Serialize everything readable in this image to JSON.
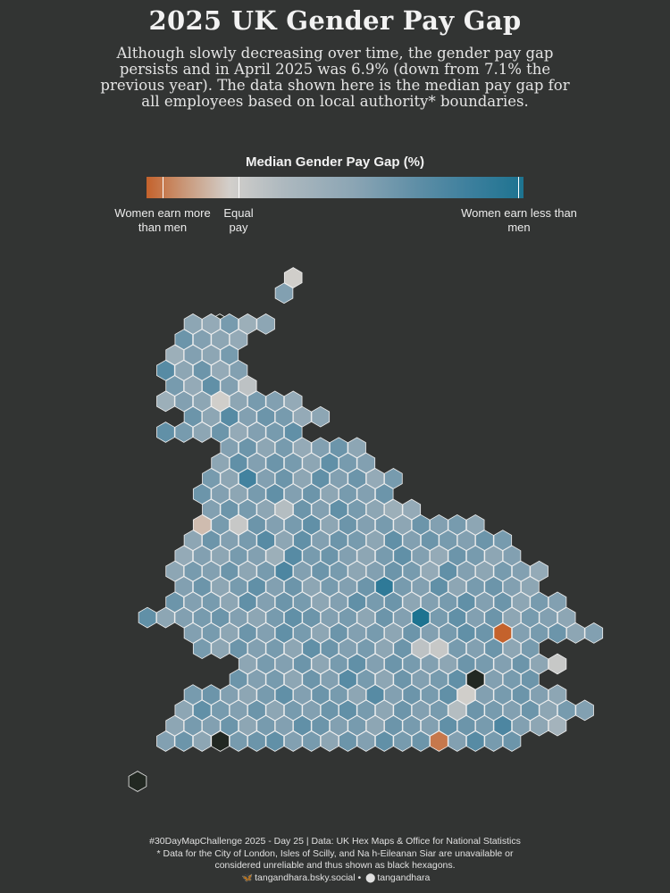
{
  "title": "2025 UK Gender Pay Gap",
  "subtitle": "Although slowly decreasing over time, the gender pay gap persists and in April 2025 was 6.9% (down from 7.1% the previous year). The data shown here is the median pay gap for all employees based on local authority* boundaries.",
  "legend": {
    "title": "Median Gender Pay Gap (%)",
    "left_label": "Women earn more than men",
    "mid_label": "Equal pay",
    "right_label": "Women earn less than men",
    "colors": {
      "women_more": "#c4622c",
      "equal": "#d2cfcb",
      "women_less": "#1d7390",
      "no_data": "#222822"
    }
  },
  "footer": {
    "line1": "#30DayMapChallenge 2025 - Day 25 | Data: UK Hex Maps & Office for National Statistics",
    "line2": "* Data for the City of London, Isles of Scilly, and Na h-Eileanan Siar are unavailable or",
    "line3": "considered unreliable and thus shown as black hexagons.",
    "bluesky_icon": "butterfly-icon",
    "bluesky": "tangandhara.bsky.social",
    "separator": "•",
    "github_icon": "github-icon",
    "github": "tangandhara"
  },
  "hexmap": {
    "legend_range": [
      -4,
      20
    ],
    "rows": [
      {
        "start": 8,
        "values": [
          1
        ]
      },
      {
        "start": 7,
        "values": [
          10
        ]
      },
      {
        "start": 0,
        "values": [
          null
        ]
      },
      {
        "start": 2,
        "values": [
          9,
          8,
          11,
          7,
          9
        ]
      },
      {
        "start": 2,
        "values": [
          12,
          10,
          9,
          8
        ]
      },
      {
        "start": 1,
        "values": [
          7,
          10,
          9,
          11
        ]
      },
      {
        "start": 1,
        "values": [
          14,
          9,
          12,
          8,
          10
        ]
      },
      {
        "start": 1,
        "values": [
          11,
          8,
          13,
          10,
          3
        ]
      },
      {
        "start": 1,
        "values": [
          7,
          10,
          9,
          1,
          9,
          11,
          10,
          8
        ]
      },
      {
        "start": 2,
        "values": [
          12,
          9,
          14,
          10,
          12,
          11,
          8,
          9
        ]
      },
      {
        "start": 1,
        "values": [
          13,
          11,
          9,
          12,
          8,
          10,
          11,
          13
        ]
      },
      {
        "start": 4,
        "values": [
          10,
          12,
          9,
          11,
          8,
          10,
          12,
          9
        ]
      },
      {
        "start": 4,
        "values": [
          9,
          13,
          10,
          12,
          11,
          9,
          13,
          11,
          10
        ]
      },
      {
        "start": 3,
        "values": [
          11,
          9,
          16,
          10,
          12,
          9,
          13,
          10,
          12,
          8,
          11
        ]
      },
      {
        "start": 3,
        "values": [
          12,
          10,
          9,
          11,
          13,
          10,
          12,
          9,
          11,
          10,
          12
        ]
      },
      {
        "start": 3,
        "values": [
          10,
          12,
          11,
          9,
          4,
          12,
          10,
          13,
          11,
          9,
          7,
          8
        ]
      },
      {
        "start": 3,
        "values": [
          0,
          11,
          2,
          12,
          10,
          11,
          13,
          9,
          12,
          10,
          11,
          9,
          12,
          10,
          11,
          9
        ]
      },
      {
        "start": 2,
        "values": [
          9,
          12,
          10,
          11,
          14,
          9,
          13,
          10,
          12,
          11,
          9,
          13,
          10,
          12,
          11,
          10,
          12,
          11
        ]
      },
      {
        "start": 2,
        "values": [
          8,
          10,
          9,
          11,
          10,
          7,
          14,
          11,
          12,
          10,
          9,
          11,
          13,
          10,
          8,
          12,
          11,
          9,
          10
        ]
      },
      {
        "start": 1,
        "values": [
          9,
          11,
          10,
          12,
          9,
          11,
          15,
          10,
          12,
          11,
          9,
          10,
          12,
          11,
          8,
          13,
          10,
          9,
          11,
          10,
          8
        ]
      },
      {
        "start": 2,
        "values": [
          10,
          12,
          9,
          11,
          13,
          10,
          12,
          9,
          11,
          10,
          12,
          18,
          11,
          10,
          13,
          9,
          11,
          12,
          10,
          9
        ]
      },
      {
        "start": 1,
        "values": [
          12,
          10,
          11,
          9,
          13,
          10,
          12,
          11,
          9,
          10,
          13,
          11,
          12,
          9,
          10,
          11,
          13,
          10,
          12,
          9,
          11,
          10
        ]
      },
      {
        "start": 0,
        "values": [
          13,
          9,
          10,
          11,
          12,
          10,
          9,
          11,
          13,
          12,
          10,
          11,
          9,
          12,
          10,
          20,
          11,
          13,
          10,
          12,
          9,
          11,
          10,
          9
        ]
      },
      {
        "start": 2,
        "values": [
          10,
          11,
          9,
          12,
          10,
          13,
          11,
          9,
          12,
          10,
          11,
          9,
          12,
          10,
          11,
          13,
          12,
          -4,
          10,
          11,
          12,
          9,
          10
        ]
      },
      {
        "start": 3,
        "values": [
          11,
          9,
          12,
          10,
          11,
          9,
          13,
          12,
          10,
          11,
          9,
          12,
          3,
          2,
          11,
          10,
          12,
          9,
          11
        ]
      },
      {
        "start": 5,
        "values": [
          9,
          11,
          10,
          12,
          9,
          11,
          13,
          10,
          12,
          11,
          10,
          9,
          12,
          11,
          10,
          12,
          9,
          2
        ]
      },
      {
        "start": 5,
        "values": [
          12,
          10,
          11,
          9,
          12,
          10,
          14,
          11,
          9,
          12,
          10,
          11,
          13,
          null,
          10,
          11,
          12
        ]
      },
      {
        "start": 2,
        "values": [
          11,
          12,
          10,
          9,
          11,
          13,
          10,
          12,
          11,
          9,
          14,
          10,
          12,
          11,
          13,
          1,
          10,
          11,
          12,
          10,
          9
        ]
      },
      {
        "start": 2,
        "values": [
          9,
          13,
          11,
          10,
          12,
          9,
          11,
          10,
          12,
          13,
          11,
          9,
          12,
          10,
          11,
          4,
          12,
          11,
          10,
          12,
          9,
          11,
          10
        ]
      },
      {
        "start": 1,
        "values": [
          9,
          11,
          10,
          12,
          9,
          11,
          10,
          13,
          12,
          10,
          11,
          9,
          12,
          11,
          10,
          13,
          12,
          11,
          15,
          10,
          9,
          6
        ]
      },
      {
        "start": 1,
        "values": [
          10,
          12,
          9,
          null,
          11,
          12,
          13,
          10,
          11,
          9,
          12,
          10,
          13,
          11,
          12,
          -3,
          10,
          14,
          11,
          12
        ]
      },
      {
        "start": 0,
        "values": [
          null
        ]
      }
    ]
  }
}
